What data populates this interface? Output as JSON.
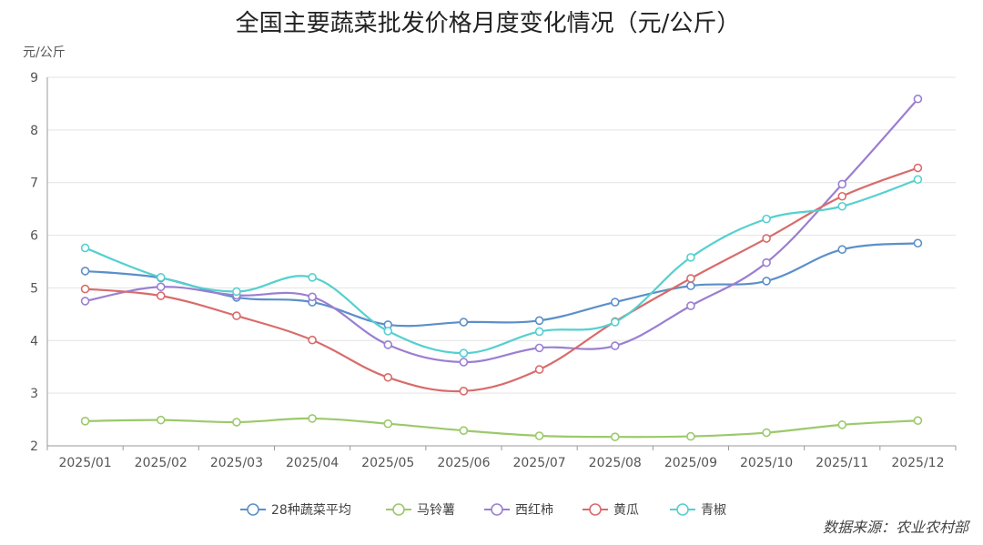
{
  "chart_data": {
    "type": "line",
    "title": "全国主要蔬菜批发价格月度变化情况（元/公斤）",
    "ylabel": "元/公斤",
    "xlabel": "",
    "categories": [
      "2025/01",
      "2025/02",
      "2025/03",
      "2025/04",
      "2025/05",
      "2025/06",
      "2025/07",
      "2025/08",
      "2025/09",
      "2025/10",
      "2025/11",
      "2025/12"
    ],
    "ylim": [
      2,
      9
    ],
    "yticks": [
      2,
      3,
      4,
      5,
      6,
      7,
      8,
      9
    ],
    "grid": true,
    "legend_position": "bottom",
    "series": [
      {
        "name": "28种蔬菜平均",
        "color": "#5b8fc9",
        "values": [
          5.32,
          5.19,
          4.82,
          4.73,
          4.3,
          4.35,
          4.38,
          4.73,
          5.04,
          5.13,
          5.73,
          5.85
        ]
      },
      {
        "name": "马铃薯",
        "color": "#9cc96b",
        "values": [
          2.47,
          2.49,
          2.45,
          2.52,
          2.42,
          2.29,
          2.19,
          2.17,
          2.18,
          2.25,
          2.4,
          2.48
        ]
      },
      {
        "name": "西红柿",
        "color": "#9b7fd1",
        "values": [
          4.75,
          5.02,
          4.86,
          4.83,
          3.92,
          3.59,
          3.86,
          3.9,
          4.66,
          5.48,
          6.97,
          8.59
        ]
      },
      {
        "name": "黄瓜",
        "color": "#d96b6b",
        "values": [
          4.98,
          4.85,
          4.47,
          4.01,
          3.3,
          3.04,
          3.45,
          4.36,
          5.18,
          5.94,
          6.74,
          7.28
        ]
      },
      {
        "name": "青椒",
        "color": "#55d0cf",
        "values": [
          5.76,
          5.2,
          4.93,
          5.2,
          4.18,
          3.76,
          4.17,
          4.35,
          5.58,
          6.31,
          6.55,
          7.06
        ]
      }
    ]
  },
  "source": "数据来源：农业农村部"
}
